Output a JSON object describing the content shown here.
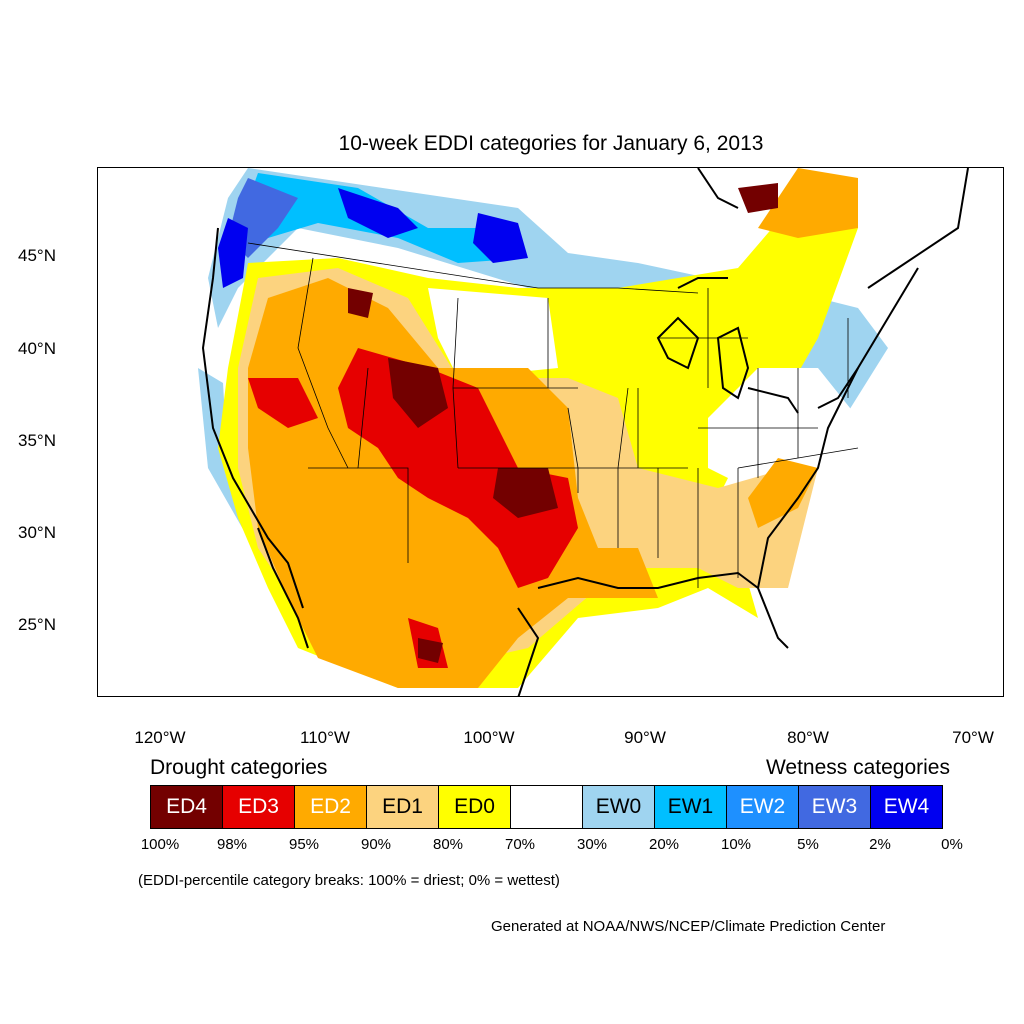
{
  "title": "10-week EDDI categories for January 6, 2013",
  "map": {
    "latitude_labels": [
      "45°N",
      "40°N",
      "35°N",
      "30°N",
      "25°N"
    ],
    "longitude_labels": [
      "120°W",
      "110°W",
      "100°W",
      "90°W",
      "80°W",
      "70°W"
    ],
    "dominant_regions": [
      {
        "area": "Southern Plains, Rockies and Great Basin",
        "category": "ED3-ED4"
      },
      {
        "area": "Texas, Mexico and Gulf coast",
        "category": "ED2"
      },
      {
        "area": "Northern border, Pacific Northwest and Great Lakes",
        "category": "EW1-EW4"
      }
    ]
  },
  "legend": {
    "drought_heading": "Drought categories",
    "wetness_heading": "Wetness categories",
    "categories": [
      {
        "label": "ED4",
        "color": "#730000",
        "text_color": "#ffffff"
      },
      {
        "label": "ED3",
        "color": "#e60000",
        "text_color": "#ffffff"
      },
      {
        "label": "ED2",
        "color": "#ffaa00",
        "text_color": "#ffffff"
      },
      {
        "label": "ED1",
        "color": "#fcd37f",
        "text_color": "#000000"
      },
      {
        "label": "ED0",
        "color": "#ffff00",
        "text_color": "#000000"
      },
      {
        "label": "",
        "color": "#ffffff",
        "text_color": "#000000"
      },
      {
        "label": "EW0",
        "color": "#9fd4f0",
        "text_color": "#000000"
      },
      {
        "label": "EW1",
        "color": "#00bfff",
        "text_color": "#000000"
      },
      {
        "label": "EW2",
        "color": "#1e90ff",
        "text_color": "#ffffff"
      },
      {
        "label": "EW3",
        "color": "#4169e1",
        "text_color": "#ffffff"
      },
      {
        "label": "EW4",
        "color": "#0000f0",
        "text_color": "#ffffff"
      }
    ],
    "breaks": [
      "100%",
      "98%",
      "95%",
      "90%",
      "80%",
      "70%",
      "30%",
      "20%",
      "10%",
      "5%",
      "2%",
      "0%"
    ]
  },
  "note": "(EDDI-percentile category breaks: 100% = driest; 0% = wettest)",
  "credit": "Generated at NOAA/NWS/NCEP/Climate Prediction Center"
}
